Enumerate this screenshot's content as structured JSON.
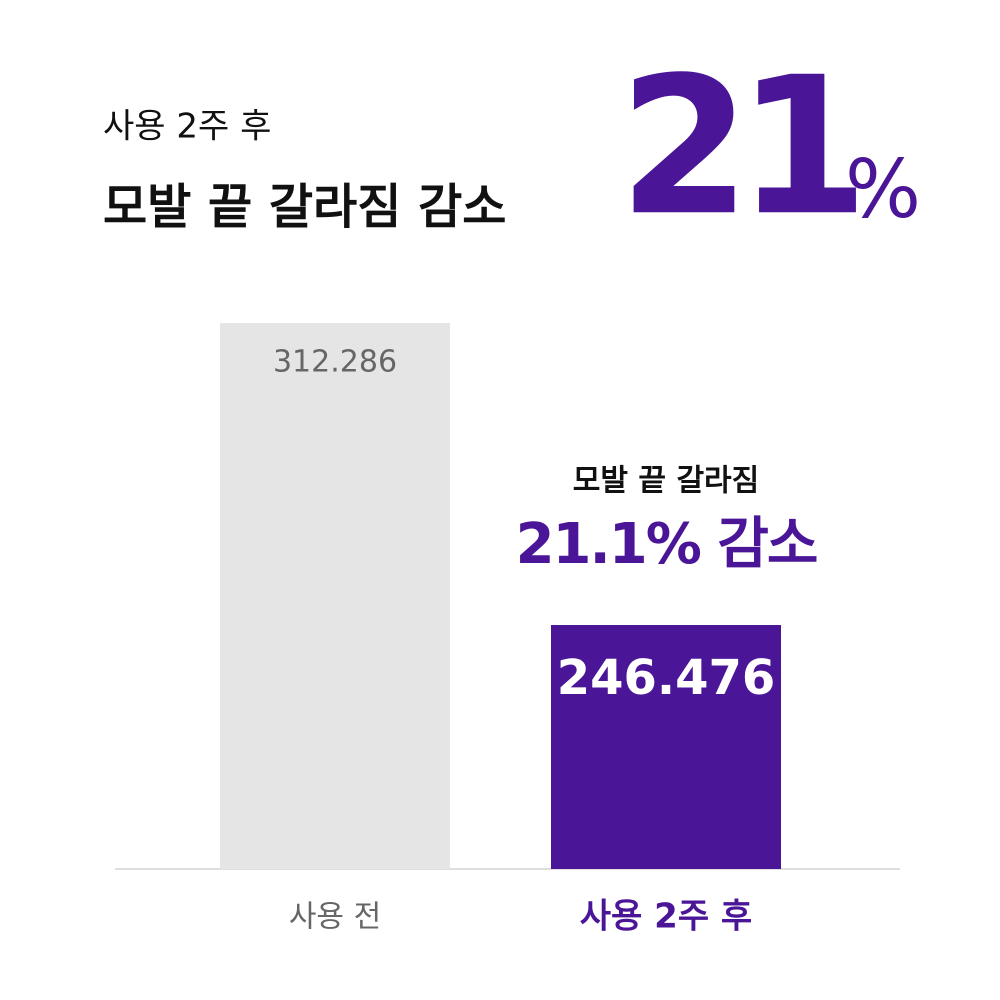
{
  "chart_data": {
    "type": "bar",
    "subtitle": "사용 2주 후",
    "title": "모발 끝 갈라짐 감소",
    "headline": "21",
    "headline_unit": "%",
    "annotation": [
      "모발 끝 갈라짐",
      "21.1% 감소"
    ],
    "categories": [
      "사용 전",
      "사용 2주 후"
    ],
    "values": [
      312.286,
      246.476
    ],
    "colors": [
      "#e5e5e5",
      "#4a1596"
    ],
    "ylim": [
      193.3,
      312.3
    ]
  }
}
